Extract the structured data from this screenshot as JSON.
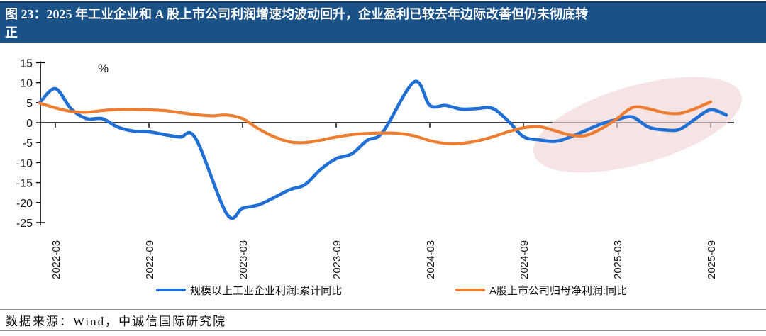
{
  "header": {
    "title": "图 23：2025 年工业企业和 A 股上市公司利润增速均波动回升，企业盈利已较去年边际改善但仍未彻底转\n正",
    "bg_color": "#1a5187",
    "text_color": "#ffffff"
  },
  "footer": {
    "source": "数据来源：Wind，中诚信国际研究院"
  },
  "chart_data": {
    "type": "line",
    "unit_label": "%",
    "ylim": [
      -25,
      15
    ],
    "y_ticks": [
      15,
      10,
      5,
      0,
      -5,
      -10,
      -15,
      -20,
      -25
    ],
    "x_tick_labels": [
      "2022-03",
      "2022-09",
      "2023-03",
      "2023-09",
      "2024-03",
      "2024-09",
      "2025-03",
      "2025-09"
    ],
    "x_tick_month_indices": [
      1,
      7,
      13,
      19,
      25,
      31,
      37,
      43
    ],
    "months": [
      "2022-02",
      "2022-03",
      "2022-04",
      "2022-05",
      "2022-06",
      "2022-07",
      "2022-08",
      "2022-09",
      "2022-10",
      "2022-11",
      "2022-12",
      "2023-01",
      "2023-02",
      "2023-03",
      "2023-04",
      "2023-05",
      "2023-06",
      "2023-07",
      "2023-08",
      "2023-09",
      "2023-10",
      "2023-11",
      "2023-12",
      "2024-01",
      "2024-02",
      "2024-03",
      "2024-04",
      "2024-05",
      "2024-06",
      "2024-07",
      "2024-08",
      "2024-09",
      "2024-10",
      "2024-11",
      "2024-12",
      "2025-01",
      "2025-02",
      "2025-03",
      "2025-04",
      "2025-05",
      "2025-06",
      "2025-07",
      "2025-08",
      "2025-09",
      "2025-10"
    ],
    "series": [
      {
        "name": "规模以上工业企业利润:累计同比",
        "color": "#1f6fd5",
        "values": [
          5.0,
          8.5,
          3.5,
          1.0,
          1.0,
          -1.1,
          -2.1,
          -2.3,
          -3.0,
          -3.6,
          -4.0,
          null,
          -22.9,
          -21.4,
          -20.6,
          -18.8,
          -16.8,
          -15.5,
          -11.7,
          -9.0,
          -7.8,
          -4.4,
          -2.3,
          null,
          10.2,
          4.3,
          4.3,
          3.4,
          3.5,
          3.6,
          0.5,
          -3.5,
          -4.3,
          -4.7,
          -3.6,
          null,
          -0.3,
          0.8,
          1.4,
          -1.1,
          -1.8,
          -1.7,
          0.9,
          3.2,
          1.9
        ]
      },
      {
        "name": "A股上市公司归母净利润:同比",
        "color": "#ed7d31",
        "values": [
          4.9,
          3.7,
          2.8,
          2.6,
          3.0,
          3.3,
          3.3,
          3.2,
          3.0,
          2.5,
          2.0,
          1.7,
          1.9,
          1.0,
          -1.5,
          -3.5,
          -4.8,
          -5.0,
          -4.4,
          -3.6,
          -3.0,
          -2.7,
          -2.6,
          -2.7,
          -3.3,
          -4.5,
          -5.2,
          -5.2,
          -4.6,
          -3.6,
          -2.3,
          -1.3,
          -1.0,
          -2.0,
          -3.1,
          -3.2,
          -1.5,
          1.0,
          3.8,
          3.5,
          2.5,
          2.3,
          3.5,
          5.2,
          null
        ]
      }
    ],
    "annotation": {
      "shape": "ellipse-highlight",
      "color": "#f0d2d2",
      "covers": "2024-09 to 2025-10"
    },
    "legend_position": "bottom"
  }
}
